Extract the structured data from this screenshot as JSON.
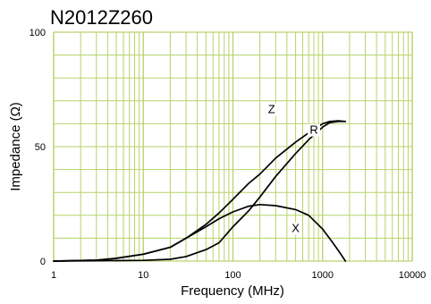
{
  "chart_data": {
    "type": "line",
    "title": "N2012Z260",
    "xlabel": "Frequency (MHz)",
    "ylabel": "Impedance (Ω)",
    "x_scale": "log",
    "xlim": [
      1,
      10000
    ],
    "ylim": [
      0,
      100
    ],
    "x_ticks": [
      {
        "value": 1,
        "label": "1"
      },
      {
        "value": 10,
        "label": "10"
      },
      {
        "value": 100,
        "label": "100"
      },
      {
        "value": 1000,
        "label": "1000"
      },
      {
        "value": 10000,
        "label": "10000"
      }
    ],
    "y_ticks": [
      {
        "value": 0,
        "label": "0"
      },
      {
        "value": 50,
        "label": "50"
      },
      {
        "value": 100,
        "label": "100"
      }
    ],
    "grid": true,
    "grid_color": "#b5d36a",
    "line_color": "#000000",
    "series": [
      {
        "name": "Z",
        "points": [
          [
            1,
            0
          ],
          [
            3,
            0.4
          ],
          [
            5,
            1.2
          ],
          [
            10,
            3
          ],
          [
            20,
            6
          ],
          [
            30,
            10
          ],
          [
            50,
            16
          ],
          [
            70,
            21
          ],
          [
            100,
            27
          ],
          [
            150,
            34
          ],
          [
            200,
            38
          ],
          [
            300,
            45
          ],
          [
            500,
            52
          ],
          [
            700,
            56
          ],
          [
            1000,
            60
          ],
          [
            1200,
            61
          ],
          [
            1500,
            61.3
          ],
          [
            1800,
            61
          ]
        ],
        "label": {
          "text": "Z",
          "x": 270,
          "y": 65
        }
      },
      {
        "name": "R",
        "points": [
          [
            1,
            0
          ],
          [
            10,
            0.3
          ],
          [
            20,
            0.8
          ],
          [
            30,
            2
          ],
          [
            50,
            5
          ],
          [
            70,
            8
          ],
          [
            100,
            15
          ],
          [
            150,
            22
          ],
          [
            200,
            28
          ],
          [
            300,
            37
          ],
          [
            500,
            47
          ],
          [
            700,
            53
          ],
          [
            1000,
            58.5
          ],
          [
            1200,
            60.5
          ],
          [
            1500,
            61
          ],
          [
            1800,
            61
          ]
        ],
        "label": {
          "text": "R",
          "x": 800,
          "y": 56
        }
      },
      {
        "name": "X",
        "points": [
          [
            1,
            0
          ],
          [
            3,
            0.4
          ],
          [
            5,
            1.2
          ],
          [
            10,
            3
          ],
          [
            20,
            6
          ],
          [
            30,
            10
          ],
          [
            50,
            15
          ],
          [
            70,
            18.5
          ],
          [
            100,
            21.5
          ],
          [
            150,
            24
          ],
          [
            200,
            24.7
          ],
          [
            300,
            24.2
          ],
          [
            500,
            22.5
          ],
          [
            700,
            20
          ],
          [
            1000,
            14
          ],
          [
            1300,
            8
          ],
          [
            1600,
            3
          ],
          [
            1800,
            0
          ]
        ],
        "label": {
          "text": "X",
          "x": 500,
          "y": 13
        }
      }
    ]
  }
}
